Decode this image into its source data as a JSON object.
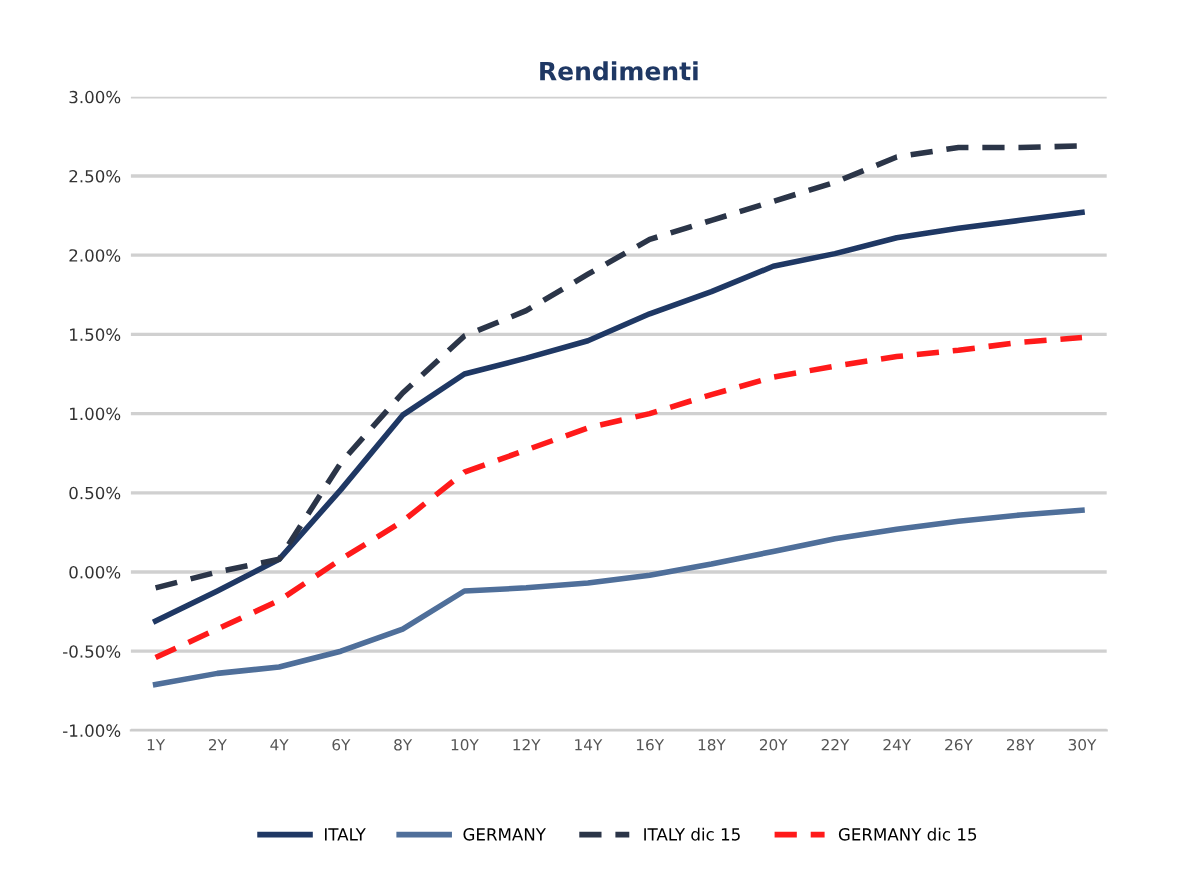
{
  "chart_data": {
    "type": "line",
    "title": "Rendimenti",
    "categories": [
      "1Y",
      "2Y",
      "4Y",
      "6Y",
      "8Y",
      "10Y",
      "12Y",
      "14Y",
      "16Y",
      "18Y",
      "20Y",
      "22Y",
      "24Y",
      "26Y",
      "28Y",
      "30Y"
    ],
    "series": [
      {
        "name": "ITALY",
        "color": "#1f3864",
        "line_style": "solid",
        "values": [
          -0.31,
          -0.12,
          0.08,
          0.52,
          0.99,
          1.25,
          1.35,
          1.46,
          1.63,
          1.77,
          1.93,
          2.01,
          2.11,
          2.17,
          2.22,
          2.27
        ]
      },
      {
        "name": "GERMANY",
        "color": "#4f6f9a",
        "line_style": "solid",
        "values": [
          -0.71,
          -0.64,
          -0.6,
          -0.5,
          -0.36,
          -0.12,
          -0.1,
          -0.07,
          -0.02,
          0.05,
          0.13,
          0.21,
          0.27,
          0.32,
          0.36,
          0.39
        ]
      },
      {
        "name": "ITALY dic 15",
        "color": "#2b3548",
        "line_style": "dashed",
        "values": [
          -0.1,
          0.0,
          0.08,
          0.69,
          1.13,
          1.49,
          1.65,
          1.88,
          2.1,
          2.22,
          2.34,
          2.46,
          2.62,
          2.68,
          2.68,
          2.69
        ]
      },
      {
        "name": "GERMANY dic 15",
        "color": "#ff1a1a",
        "line_style": "dashed",
        "values": [
          -0.54,
          -0.36,
          -0.18,
          0.08,
          0.32,
          0.63,
          0.77,
          0.91,
          1.0,
          1.12,
          1.23,
          1.3,
          1.36,
          1.4,
          1.45,
          1.48
        ]
      }
    ],
    "ylim": [
      -1.0,
      3.0
    ],
    "yticks": [
      {
        "value": -1.0,
        "label": "-1.00%"
      },
      {
        "value": -0.5,
        "label": "-0.50%"
      },
      {
        "value": 0.0,
        "label": "0.00%"
      },
      {
        "value": 0.5,
        "label": "0.50%"
      },
      {
        "value": 1.0,
        "label": "1.00%"
      },
      {
        "value": 1.5,
        "label": "1.50%"
      },
      {
        "value": 2.0,
        "label": "2.00%"
      },
      {
        "value": 2.5,
        "label": "2.50%"
      },
      {
        "value": 3.0,
        "label": "3.00%"
      }
    ],
    "grid": "y",
    "legend": "bottom",
    "marker": "none"
  }
}
